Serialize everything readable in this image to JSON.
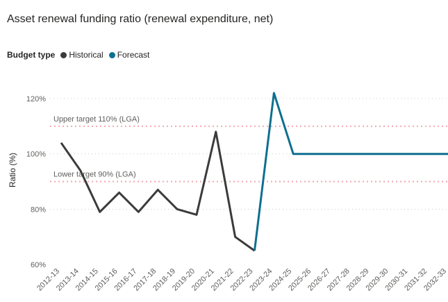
{
  "chart_data": {
    "type": "line",
    "title": "Asset renewal funding ratio (renewal expenditure, net)",
    "legend_title": "Budget type",
    "legend_position": "top-left",
    "xlabel": "",
    "ylabel": "Ratio (%)",
    "ylim": [
      60,
      120
    ],
    "yticks": [
      60,
      80,
      100,
      120
    ],
    "ytick_labels": [
      "60%",
      "80%",
      "100%",
      "120%"
    ],
    "grid": true,
    "categories": [
      "2012-13",
      "2013-14",
      "2014-15",
      "2015-16",
      "2016-17",
      "2017-18",
      "2018-19",
      "2019-20",
      "2020-21",
      "2021-22",
      "2022-23",
      "2023-24",
      "2024-25",
      "2025-26",
      "2026-27",
      "2027-28",
      "2028-29",
      "2029-30",
      "2030-31",
      "2031-32",
      "2032-33"
    ],
    "series": [
      {
        "name": "Historical",
        "color": "#3b3b3b",
        "values": [
          104,
          94,
          79,
          86,
          79,
          87,
          80,
          78,
          108,
          70,
          65,
          null,
          null,
          null,
          null,
          null,
          null,
          null,
          null,
          null,
          null
        ]
      },
      {
        "name": "Forecast",
        "color": "#0f6f8f",
        "values": [
          null,
          null,
          null,
          null,
          null,
          null,
          null,
          null,
          null,
          null,
          65,
          122,
          100,
          100,
          100,
          100,
          100,
          100,
          100,
          100,
          100
        ]
      }
    ],
    "reference_lines": [
      {
        "name": "upper-target",
        "value": 110,
        "label": "Upper target 110% (LGA)",
        "color": "#f2a7ae"
      },
      {
        "name": "lower-target",
        "value": 90,
        "label": "Lower target 90% (LGA)",
        "color": "#f2a7ae"
      }
    ]
  }
}
